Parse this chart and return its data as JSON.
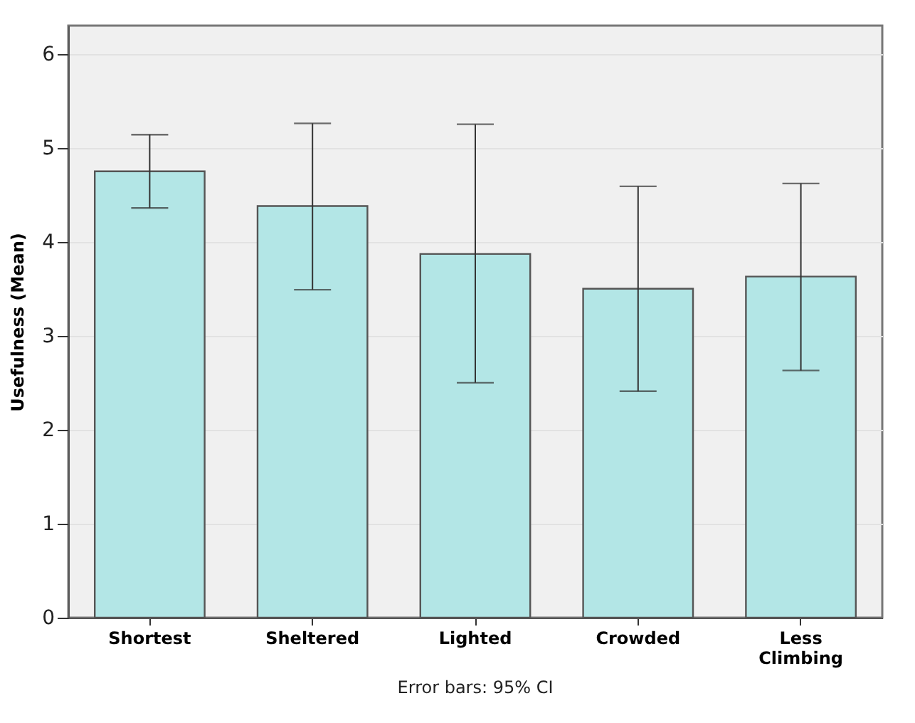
{
  "chart_data": {
    "type": "bar",
    "ylabel": "Usefulness (Mean)",
    "annotations": [
      "Error bars: 95% CI"
    ],
    "categories": [
      "Shortest",
      "Sheltered",
      "Lighted",
      "Crowded",
      "Less Climbing"
    ],
    "values": [
      4.75,
      4.38,
      3.87,
      3.5,
      3.63
    ],
    "errors": [
      [
        4.36,
        5.14
      ],
      [
        3.49,
        5.26
      ],
      [
        2.5,
        5.25
      ],
      [
        2.41,
        4.59
      ],
      [
        2.63,
        4.62
      ]
    ],
    "color": "#b3e6e6",
    "ylim": [
      0,
      6.3
    ],
    "yticks": [
      0,
      1,
      2,
      3,
      4,
      5,
      6
    ],
    "grid": "y"
  }
}
